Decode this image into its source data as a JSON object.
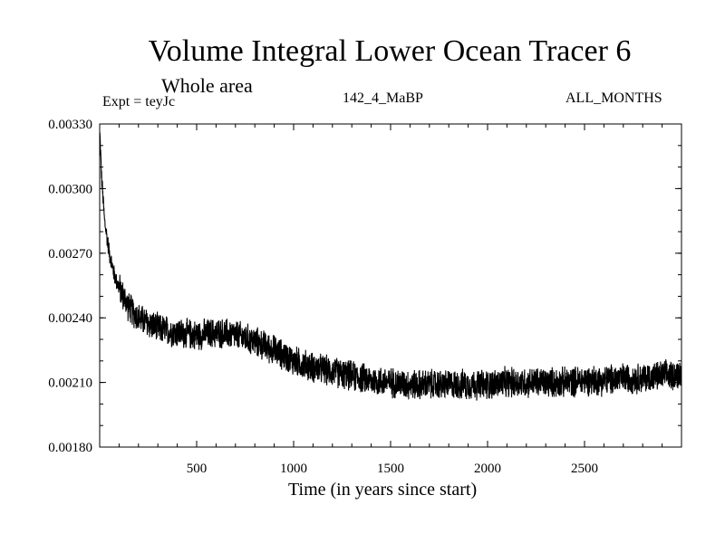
{
  "chart_data": {
    "type": "line",
    "title": "Volume Integral Lower Ocean Tracer 6",
    "subtitle": "Whole area",
    "experiment": "Expt = teyJc",
    "period": "142_4_MaBP",
    "months": "ALL_MONTHS",
    "xlabel": "Time (in years since start)",
    "ylabel": "",
    "xlim": [
      0,
      3000
    ],
    "ylim": [
      0.0018,
      0.0033
    ],
    "xticks": [
      500,
      1000,
      1500,
      2000,
      2500
    ],
    "xtick_labels": [
      "500",
      "1000",
      "1500",
      "2000",
      "2500"
    ],
    "yticks": [
      0.0018,
      0.0021,
      0.0024,
      0.0027,
      0.003,
      0.0033
    ],
    "ytick_labels": [
      "0.00180",
      "0.00210",
      "0.00240",
      "0.00270",
      "0.00300",
      "0.00330"
    ],
    "series": [
      {
        "name": "Volume Integral Lower Ocean Tracer 6",
        "color": "#000000",
        "x": [
          1,
          10,
          25,
          50,
          75,
          100,
          150,
          200,
          300,
          400,
          500,
          600,
          700,
          800,
          900,
          1000,
          1100,
          1200,
          1300,
          1400,
          1500,
          1600,
          1700,
          1800,
          1900,
          2000,
          2100,
          2200,
          2300,
          2400,
          2500,
          2600,
          2700,
          2800,
          2900,
          3000
        ],
        "values": [
          0.00325,
          0.00305,
          0.00285,
          0.0027,
          0.0026,
          0.00254,
          0.00245,
          0.0024,
          0.00235,
          0.00233,
          0.00232,
          0.00233,
          0.00232,
          0.00229,
          0.00225,
          0.0022,
          0.00217,
          0.00215,
          0.00213,
          0.00211,
          0.0021,
          0.00209,
          0.00209,
          0.00209,
          0.00209,
          0.00209,
          0.0021,
          0.0021,
          0.0021,
          0.0021,
          0.00211,
          0.00211,
          0.00212,
          0.00212,
          0.00213,
          0.00214
        ],
        "noise_amplitude": 8e-05
      }
    ]
  }
}
